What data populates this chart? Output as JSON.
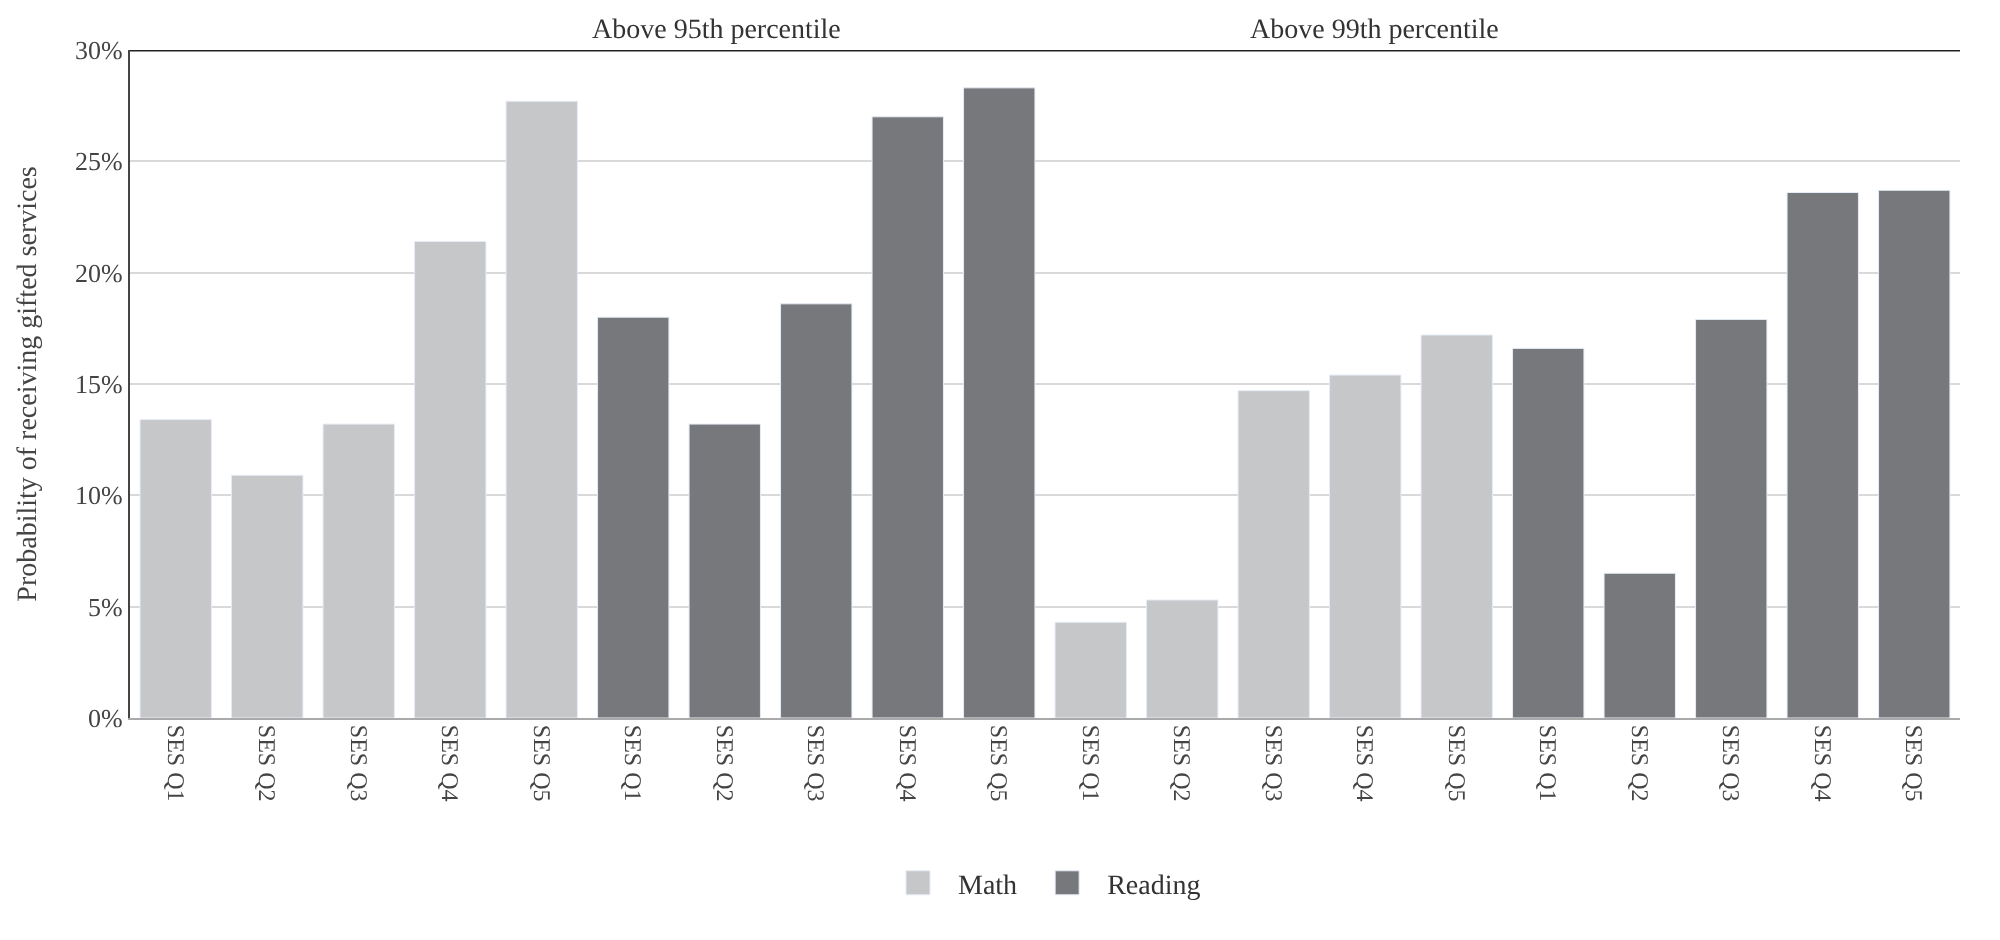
{
  "chart_data": {
    "type": "bar",
    "ylabel": "Probability of receiving gifted services",
    "categories": [
      "SES Q1",
      "SES Q2",
      "SES Q3",
      "SES Q4",
      "SES Q5",
      "SES Q1",
      "SES Q2",
      "SES Q3",
      "SES Q4",
      "SES Q5",
      "SES Q1",
      "SES Q2",
      "SES Q3",
      "SES Q4",
      "SES Q5",
      "SES Q1",
      "SES Q2",
      "SES Q3",
      "SES Q4",
      "SES Q5"
    ],
    "series": [
      {
        "name": "Math",
        "color": "#c6c7c9",
        "values": [
          13.4,
          10.9,
          13.2,
          21.4,
          27.7,
          null,
          null,
          null,
          null,
          null,
          4.3,
          5.3,
          14.7,
          15.4,
          17.2,
          null,
          null,
          null,
          null,
          null
        ]
      },
      {
        "name": "Reading",
        "color": "#77787c",
        "values": [
          null,
          null,
          null,
          null,
          null,
          18.0,
          13.2,
          18.6,
          27.0,
          28.3,
          null,
          null,
          null,
          null,
          null,
          16.6,
          6.5,
          17.9,
          23.6,
          23.7
        ]
      }
    ],
    "annotations": [
      "Above 95th percentile",
      "Above 99th percentile"
    ],
    "ylim": [
      0,
      30
    ],
    "yticks": [
      {
        "value": 0,
        "label": "0%"
      },
      {
        "value": 5,
        "label": "5%"
      },
      {
        "value": 10,
        "label": "10%"
      },
      {
        "value": 15,
        "label": "15%"
      },
      {
        "value": 20,
        "label": "20%"
      },
      {
        "value": 25,
        "label": "25%"
      },
      {
        "value": 30,
        "label": "30%"
      }
    ],
    "grid": "y",
    "legend": "bottom"
  }
}
